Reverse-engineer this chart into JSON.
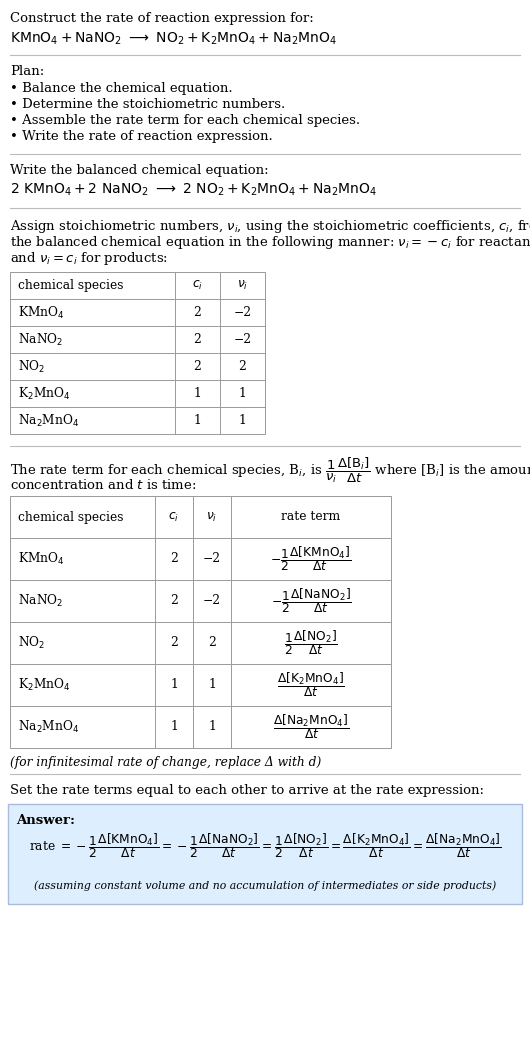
{
  "title_line1": "Construct the rate of reaction expression for:",
  "plan_header": "Plan:",
  "plan_items": [
    "• Balance the chemical equation.",
    "• Determine the stoichiometric numbers.",
    "• Assemble the rate term for each chemical species.",
    "• Write the rate of reaction expression."
  ],
  "balanced_header": "Write the balanced chemical equation:",
  "table1_headers": [
    "chemical species",
    "$c_i$",
    "$\\nu_i$"
  ],
  "table1_rows": [
    [
      "KMnO$_4$",
      "2",
      "−2"
    ],
    [
      "NaNO$_2$",
      "2",
      "−2"
    ],
    [
      "NO$_2$",
      "2",
      "2"
    ],
    [
      "K$_2$MnO$_4$",
      "1",
      "1"
    ],
    [
      "Na$_2$MnO$_4$",
      "1",
      "1"
    ]
  ],
  "table2_headers": [
    "chemical species",
    "$c_i$",
    "$\\nu_i$",
    "rate term"
  ],
  "table2_rows": [
    [
      "KMnO$_4$",
      "2",
      "−2",
      "$-\\dfrac{1}{2}\\dfrac{\\Delta[\\mathrm{KMnO_4}]}{\\Delta t}$"
    ],
    [
      "NaNO$_2$",
      "2",
      "−2",
      "$-\\dfrac{1}{2}\\dfrac{\\Delta[\\mathrm{NaNO_2}]}{\\Delta t}$"
    ],
    [
      "NO$_2$",
      "2",
      "2",
      "$\\dfrac{1}{2}\\dfrac{\\Delta[\\mathrm{NO_2}]}{\\Delta t}$"
    ],
    [
      "K$_2$MnO$_4$",
      "1",
      "1",
      "$\\dfrac{\\Delta[\\mathrm{K_2MnO_4}]}{\\Delta t}$"
    ],
    [
      "Na$_2$MnO$_4$",
      "1",
      "1",
      "$\\dfrac{\\Delta[\\mathrm{Na_2MnO_4}]}{\\Delta t}$"
    ]
  ],
  "infinitesimal_note": "(for infinitesimal rate of change, replace Δ with d)",
  "set_rate_text": "Set the rate terms equal to each other to arrive at the rate expression:",
  "answer_label": "Answer:",
  "answer_box_color": "#ddeeff",
  "answer_border_color": "#aabbdd",
  "assuming_note": "(assuming constant volume and no accumulation of intermediates or side products)",
  "bg_color": "#ffffff",
  "text_color": "#000000",
  "line_color": "#bbbbbb",
  "fs": 9.5,
  "sfs": 8.8
}
